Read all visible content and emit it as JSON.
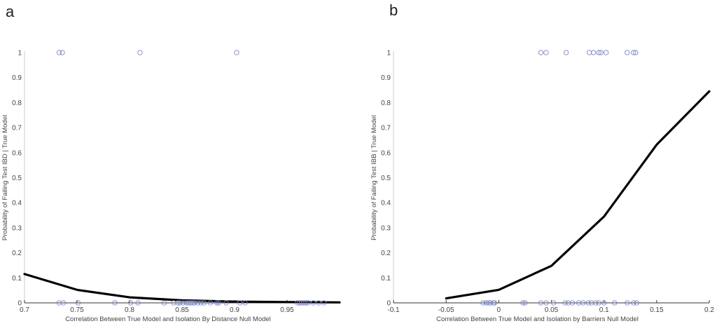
{
  "panel_letters": [
    "a",
    "b"
  ],
  "chart_data": [
    {
      "type": "line",
      "panel": "a",
      "xlabel": "Correlation Between True Model and Isolation By Distance Null Model",
      "ylabel": "Probability of Failing Test IBD | True Model",
      "xlim": [
        0.7,
        1.0
      ],
      "ylim": [
        0,
        1
      ],
      "xticks": [
        0.7,
        0.75,
        0.8,
        0.85,
        0.9,
        0.95
      ],
      "xtick_labels": [
        "0.7",
        "0.75",
        "0.8",
        "0.85",
        "0.9",
        "0.95"
      ],
      "yticks": [
        0,
        0.1,
        0.2,
        0.3,
        0.4,
        0.5,
        0.6,
        0.7,
        0.8,
        0.9,
        1
      ],
      "ytick_labels": [
        "0",
        "0.1",
        "0.2",
        "0.3",
        "0.4",
        "0.5",
        "0.6",
        "0.7",
        "0.8",
        "0.9",
        "1"
      ],
      "grid": false,
      "series": [
        {
          "kind": "line",
          "color": "#000000",
          "x": [
            0.7,
            0.75,
            0.8,
            0.85,
            0.9,
            0.95,
            1.0
          ],
          "y": [
            0.115,
            0.052,
            0.022,
            0.01,
            0.005,
            0.003,
            0.002
          ]
        },
        {
          "kind": "scatter",
          "color": "#7b84c4",
          "x": [
            0.733,
            0.736,
            0.81,
            0.902,
            0.733,
            0.737,
            0.751,
            0.786,
            0.801,
            0.808,
            0.833,
            0.842,
            0.846,
            0.848,
            0.851,
            0.854,
            0.856,
            0.858,
            0.86,
            0.862,
            0.865,
            0.868,
            0.871,
            0.877,
            0.883,
            0.885,
            0.892,
            0.905,
            0.91,
            0.96,
            0.962,
            0.964,
            0.966,
            0.968,
            0.97,
            0.975,
            0.98,
            0.985
          ],
          "y": [
            1,
            1,
            1,
            1,
            0,
            0,
            0,
            0,
            0,
            0,
            0,
            0,
            0,
            0,
            0,
            0,
            0,
            0,
            0,
            0,
            0,
            0,
            0,
            0,
            0,
            0,
            0,
            0,
            0,
            0,
            0,
            0,
            0,
            0,
            0,
            0,
            0,
            0
          ]
        }
      ]
    },
    {
      "type": "line",
      "panel": "b",
      "xlabel": "Correlation Between True Model and Isolation by Barriers Null Model",
      "ylabel": "Probability of Failing Test IBB | True Model",
      "xlim": [
        -0.1,
        0.2
      ],
      "ylim": [
        0,
        1
      ],
      "xticks": [
        -0.1,
        -0.05,
        0,
        0.05,
        0.1,
        0.15,
        0.2
      ],
      "xtick_labels": [
        "-0.1",
        "-0.05",
        "0",
        "0.05",
        "0.1",
        "0.15",
        "0.2"
      ],
      "yticks": [
        0,
        0.1,
        0.2,
        0.3,
        0.4,
        0.5,
        0.6,
        0.7,
        0.8,
        0.9,
        1
      ],
      "ytick_labels": [
        "0",
        "0.1",
        "0.2",
        "0.3",
        "0.4",
        "0.5",
        "0.6",
        "0.7",
        "0.8",
        "0.9",
        "1"
      ],
      "grid": false,
      "series": [
        {
          "kind": "line",
          "color": "#000000",
          "x": [
            -0.05,
            0,
            0.05,
            0.1,
            0.15,
            0.2
          ],
          "y": [
            0.018,
            0.052,
            0.148,
            0.345,
            0.632,
            0.845
          ]
        },
        {
          "kind": "scatter",
          "color": "#7b84c4",
          "x": [
            0.04,
            0.045,
            0.064,
            0.086,
            0.09,
            0.095,
            0.097,
            0.102,
            0.122,
            0.128,
            0.13,
            -0.015,
            -0.012,
            -0.01,
            -0.008,
            -0.005,
            -0.004,
            0.023,
            0.025,
            0.04,
            0.045,
            0.052,
            0.063,
            0.066,
            0.07,
            0.076,
            0.08,
            0.085,
            0.088,
            0.092,
            0.095,
            0.1,
            0.11,
            0.122,
            0.128,
            0.131
          ],
          "y": [
            1,
            1,
            1,
            1,
            1,
            1,
            1,
            1,
            1,
            1,
            1,
            0,
            0,
            0,
            0,
            0,
            0,
            0,
            0,
            0,
            0,
            0,
            0,
            0,
            0,
            0,
            0,
            0,
            0,
            0,
            0,
            0,
            0,
            0,
            0,
            0
          ]
        }
      ]
    }
  ]
}
